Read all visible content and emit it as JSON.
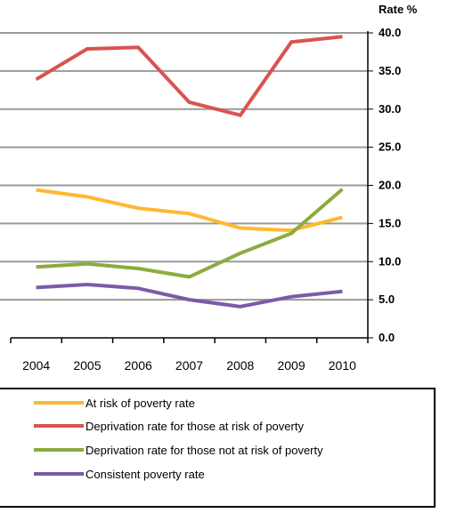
{
  "chart_data": {
    "type": "line",
    "title": "",
    "xlabel": "",
    "ylabel": "Rate %",
    "ylim": [
      0,
      40
    ],
    "yticks": [
      "0.0",
      "5.0",
      "10.0",
      "15.0",
      "20.0",
      "25.0",
      "30.0",
      "35.0",
      "40.0"
    ],
    "x": [
      "2004",
      "2005",
      "2006",
      "2007",
      "2008",
      "2009",
      "2010"
    ],
    "grid": true,
    "legend_position": "bottom",
    "series": [
      {
        "name": "At risk of poverty rate",
        "color": "#FDB92E",
        "values": [
          19.4,
          18.5,
          17.0,
          16.3,
          14.4,
          14.1,
          15.8
        ]
      },
      {
        "name": "Deprivation rate for those at risk of poverty",
        "color": "#D9534F",
        "values": [
          33.9,
          37.9,
          38.1,
          30.9,
          29.2,
          38.8,
          39.5
        ]
      },
      {
        "name": "Deprivation rate for those not at risk of poverty",
        "color": "#8CAB3F",
        "values": [
          9.3,
          9.7,
          9.1,
          8.0,
          11.1,
          13.7,
          19.5
        ]
      },
      {
        "name": "Consistent poverty rate",
        "color": "#7A5BA8",
        "values": [
          6.6,
          7.0,
          6.5,
          5.0,
          4.1,
          5.4,
          6.1
        ]
      }
    ]
  }
}
